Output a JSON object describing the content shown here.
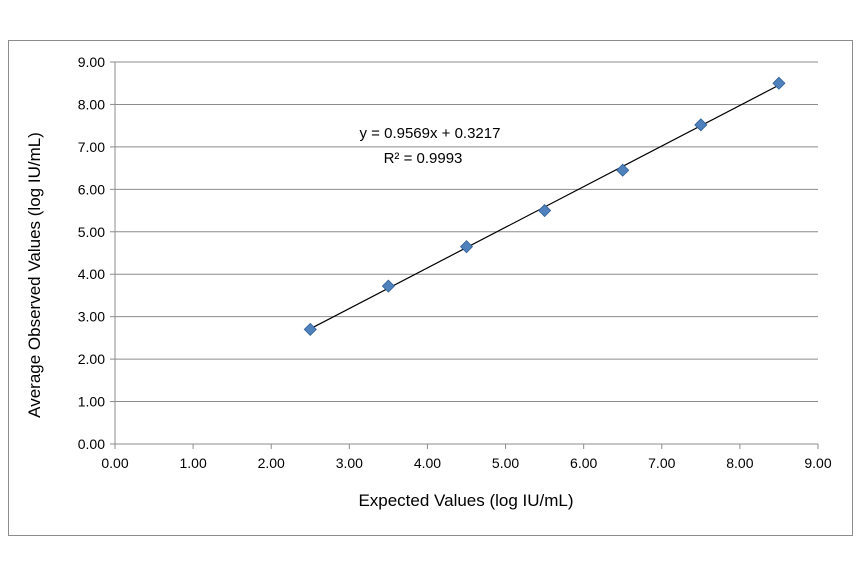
{
  "chart_data": {
    "type": "scatter",
    "xlabel": "Expected Values  (log IU/mL)",
    "ylabel": "Average Observed  Values  (log IU/mL)",
    "xlim": [
      0,
      9
    ],
    "ylim": [
      0,
      9
    ],
    "x_ticks": [
      "0.00",
      "1.00",
      "2.00",
      "3.00",
      "4.00",
      "5.00",
      "6.00",
      "7.00",
      "8.00",
      "9.00"
    ],
    "y_ticks": [
      "0.00",
      "1.00",
      "2.00",
      "3.00",
      "4.00",
      "5.00",
      "6.00",
      "7.00",
      "8.00",
      "9.00"
    ],
    "grid": "horizontal",
    "marker_color": "#4f81bd",
    "series": [
      {
        "points": [
          {
            "x": 2.5,
            "y": 2.7
          },
          {
            "x": 3.5,
            "y": 3.72
          },
          {
            "x": 4.5,
            "y": 4.65
          },
          {
            "x": 5.5,
            "y": 5.5
          },
          {
            "x": 6.5,
            "y": 6.45
          },
          {
            "x": 7.5,
            "y": 7.52
          },
          {
            "x": 8.5,
            "y": 8.5
          }
        ]
      }
    ],
    "trendline": {
      "slope": 0.9569,
      "intercept": 0.3217,
      "x_range": [
        2.5,
        8.5
      ],
      "equation": "y = 0.9569x + 0.3217",
      "r_squared": "R² = 0.9993"
    }
  }
}
